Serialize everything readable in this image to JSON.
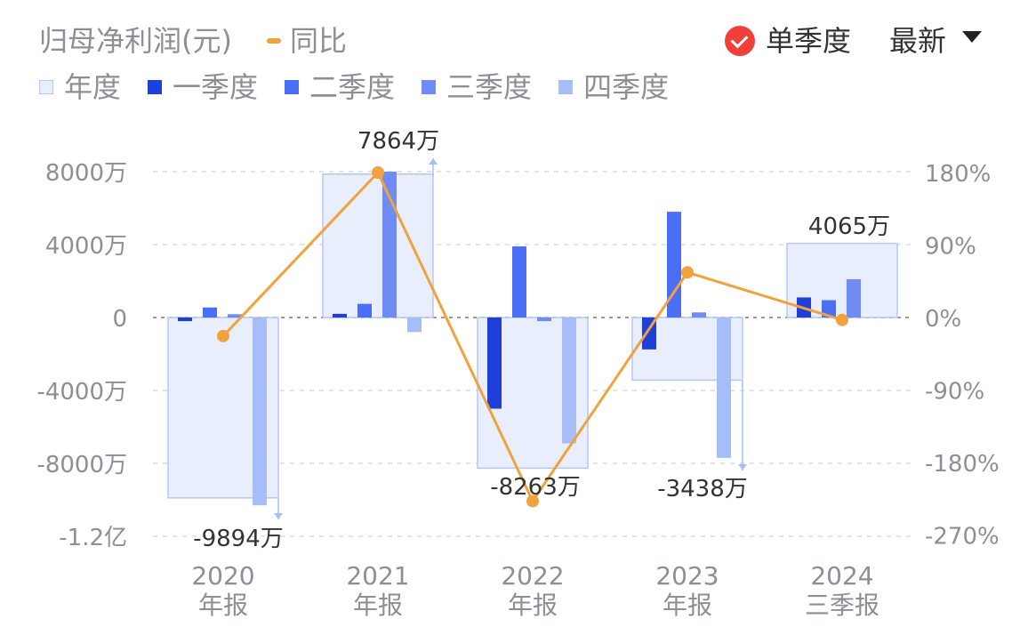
{
  "header": {
    "title": "归母净利润(元)",
    "yoy_label": "同比",
    "mode_label": "单季度",
    "latest_label": "最新"
  },
  "legend": {
    "items": [
      {
        "label": "年度",
        "color": "#e8eeff"
      },
      {
        "label": "一季度",
        "color": "#1e3fd8"
      },
      {
        "label": "二季度",
        "color": "#4a6ef6"
      },
      {
        "label": "三季度",
        "color": "#6e8cf4"
      },
      {
        "label": "四季度",
        "color": "#a6bdf8"
      }
    ]
  },
  "colors": {
    "annual_fill": "#e9eefd",
    "annual_border": "#b7c7f5",
    "q1": "#1e3fd8",
    "q2": "#4a6ef6",
    "q3": "#6e8cf4",
    "q4": "#a6bdf8",
    "yoy_line": "#f0a23c",
    "axis_text": "#8d8f96",
    "label_text": "#333333",
    "grid": "#dcdcdc"
  },
  "chart_data": {
    "type": "bar",
    "categories": [
      {
        "year": "2020",
        "period": "年报"
      },
      {
        "year": "2021",
        "period": "年报"
      },
      {
        "year": "2022",
        "period": "年报"
      },
      {
        "year": "2023",
        "period": "年报"
      },
      {
        "year": "2024",
        "period": "三季报"
      }
    ],
    "unit": "万",
    "annual": [
      -9894,
      7864,
      -8263,
      -3438,
      4065
    ],
    "annual_labels": [
      "-9894万",
      "7864万",
      "-8263万",
      "-3438万",
      "4065万"
    ],
    "series": [
      {
        "name": "一季度",
        "values": [
          -200,
          200,
          -5000,
          -1750,
          1100
        ]
      },
      {
        "name": "二季度",
        "values": [
          550,
          750,
          3900,
          5800,
          950
        ]
      },
      {
        "name": "三季度",
        "values": [
          180,
          8000,
          -200,
          280,
          2100
        ]
      },
      {
        "name": "四季度",
        "values": [
          -10300,
          -800,
          -6900,
          -7700,
          null
        ]
      }
    ],
    "yoy_percent": [
      -23,
      180,
      -228,
      56,
      -3
    ],
    "y_left": {
      "ticks": [
        8000,
        4000,
        0,
        -4000,
        -8000,
        -12000
      ],
      "tick_labels": [
        "8000万",
        "4000万",
        "0",
        "-4000万",
        "-8000万",
        "-1.2亿"
      ],
      "range": [
        -12000,
        8000
      ]
    },
    "y_right": {
      "ticks": [
        180,
        90,
        0,
        -90,
        -180,
        -270
      ],
      "tick_labels": [
        "180%",
        "90%",
        "0%",
        "-90%",
        "-180%",
        "-270%"
      ],
      "range": [
        -270,
        180
      ]
    }
  }
}
